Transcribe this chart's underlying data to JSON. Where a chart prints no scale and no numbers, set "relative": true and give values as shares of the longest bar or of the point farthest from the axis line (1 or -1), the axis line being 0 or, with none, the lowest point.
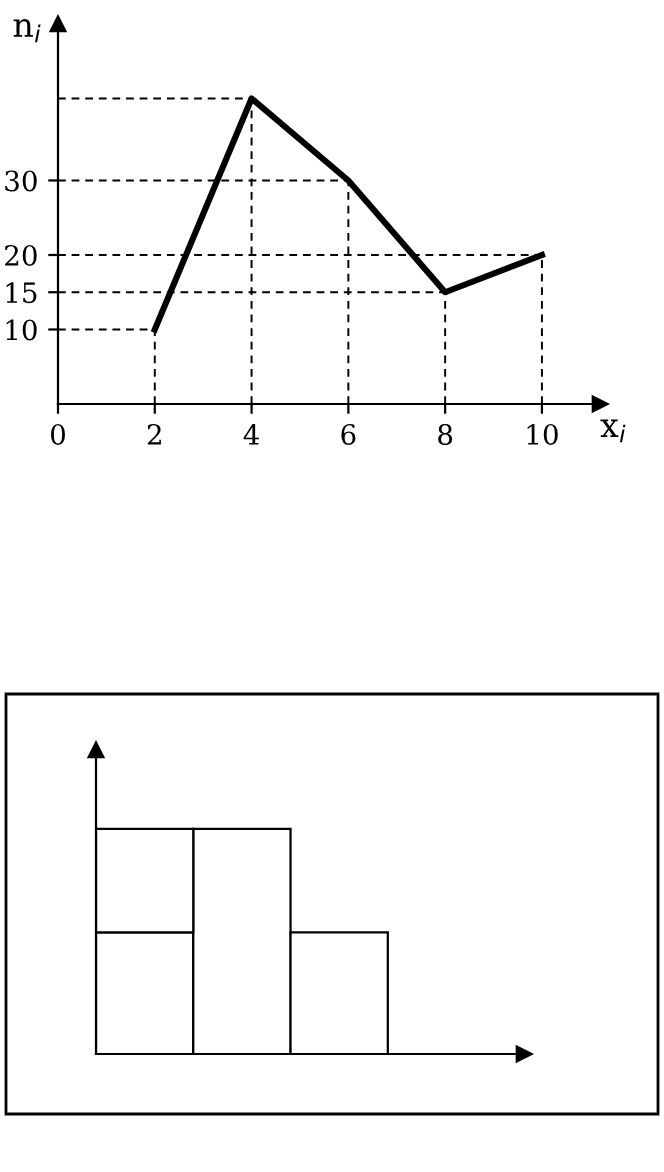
{
  "chart_data": [
    {
      "type": "line",
      "xlabel": "x$_{i}$",
      "ylabel": "n$_{i}$",
      "x": [
        2,
        4,
        6,
        8,
        10
      ],
      "series": [
        {
          "color": "#000000",
          "values": [
            10,
            41,
            30,
            15,
            20
          ]
        }
      ],
      "xlim": [
        0,
        11.2
      ],
      "ylim": [
        0,
        51
      ],
      "xticks": [
        0,
        2,
        4,
        6,
        8,
        10
      ],
      "yticks": [
        10,
        15,
        20,
        30
      ],
      "grid": false,
      "marker": "none",
      "line_style": "solid",
      "ref_lines": [
        {
          "axis": "x",
          "value": 2,
          "line_style": "dashed"
        },
        {
          "axis": "x",
          "value": 4,
          "line_style": "dashed"
        },
        {
          "axis": "x",
          "value": 6,
          "line_style": "dashed"
        },
        {
          "axis": "x",
          "value": 8,
          "line_style": "dashed"
        },
        {
          "axis": "x",
          "value": 10,
          "line_style": "dashed"
        },
        {
          "axis": "y",
          "value": 10,
          "line_style": "dashed"
        },
        {
          "axis": "y",
          "value": 41,
          "line_style": "dashed"
        },
        {
          "axis": "y",
          "value": 30,
          "line_style": "dashed"
        },
        {
          "axis": "y",
          "value": 15,
          "line_style": "dashed"
        },
        {
          "axis": "y",
          "value": 20,
          "line_style": "dashed"
        }
      ]
    },
    {
      "type": "bar",
      "stacked": true,
      "relative": true,
      "categories": [
        null,
        null,
        null
      ],
      "series": [
        {
          "color": "#ffffff",
          "values": [
            0.54,
            1,
            0.54
          ]
        },
        {
          "color": "#ffffff",
          "values": [
            0.46,
            0,
            0
          ]
        }
      ]
    }
  ]
}
